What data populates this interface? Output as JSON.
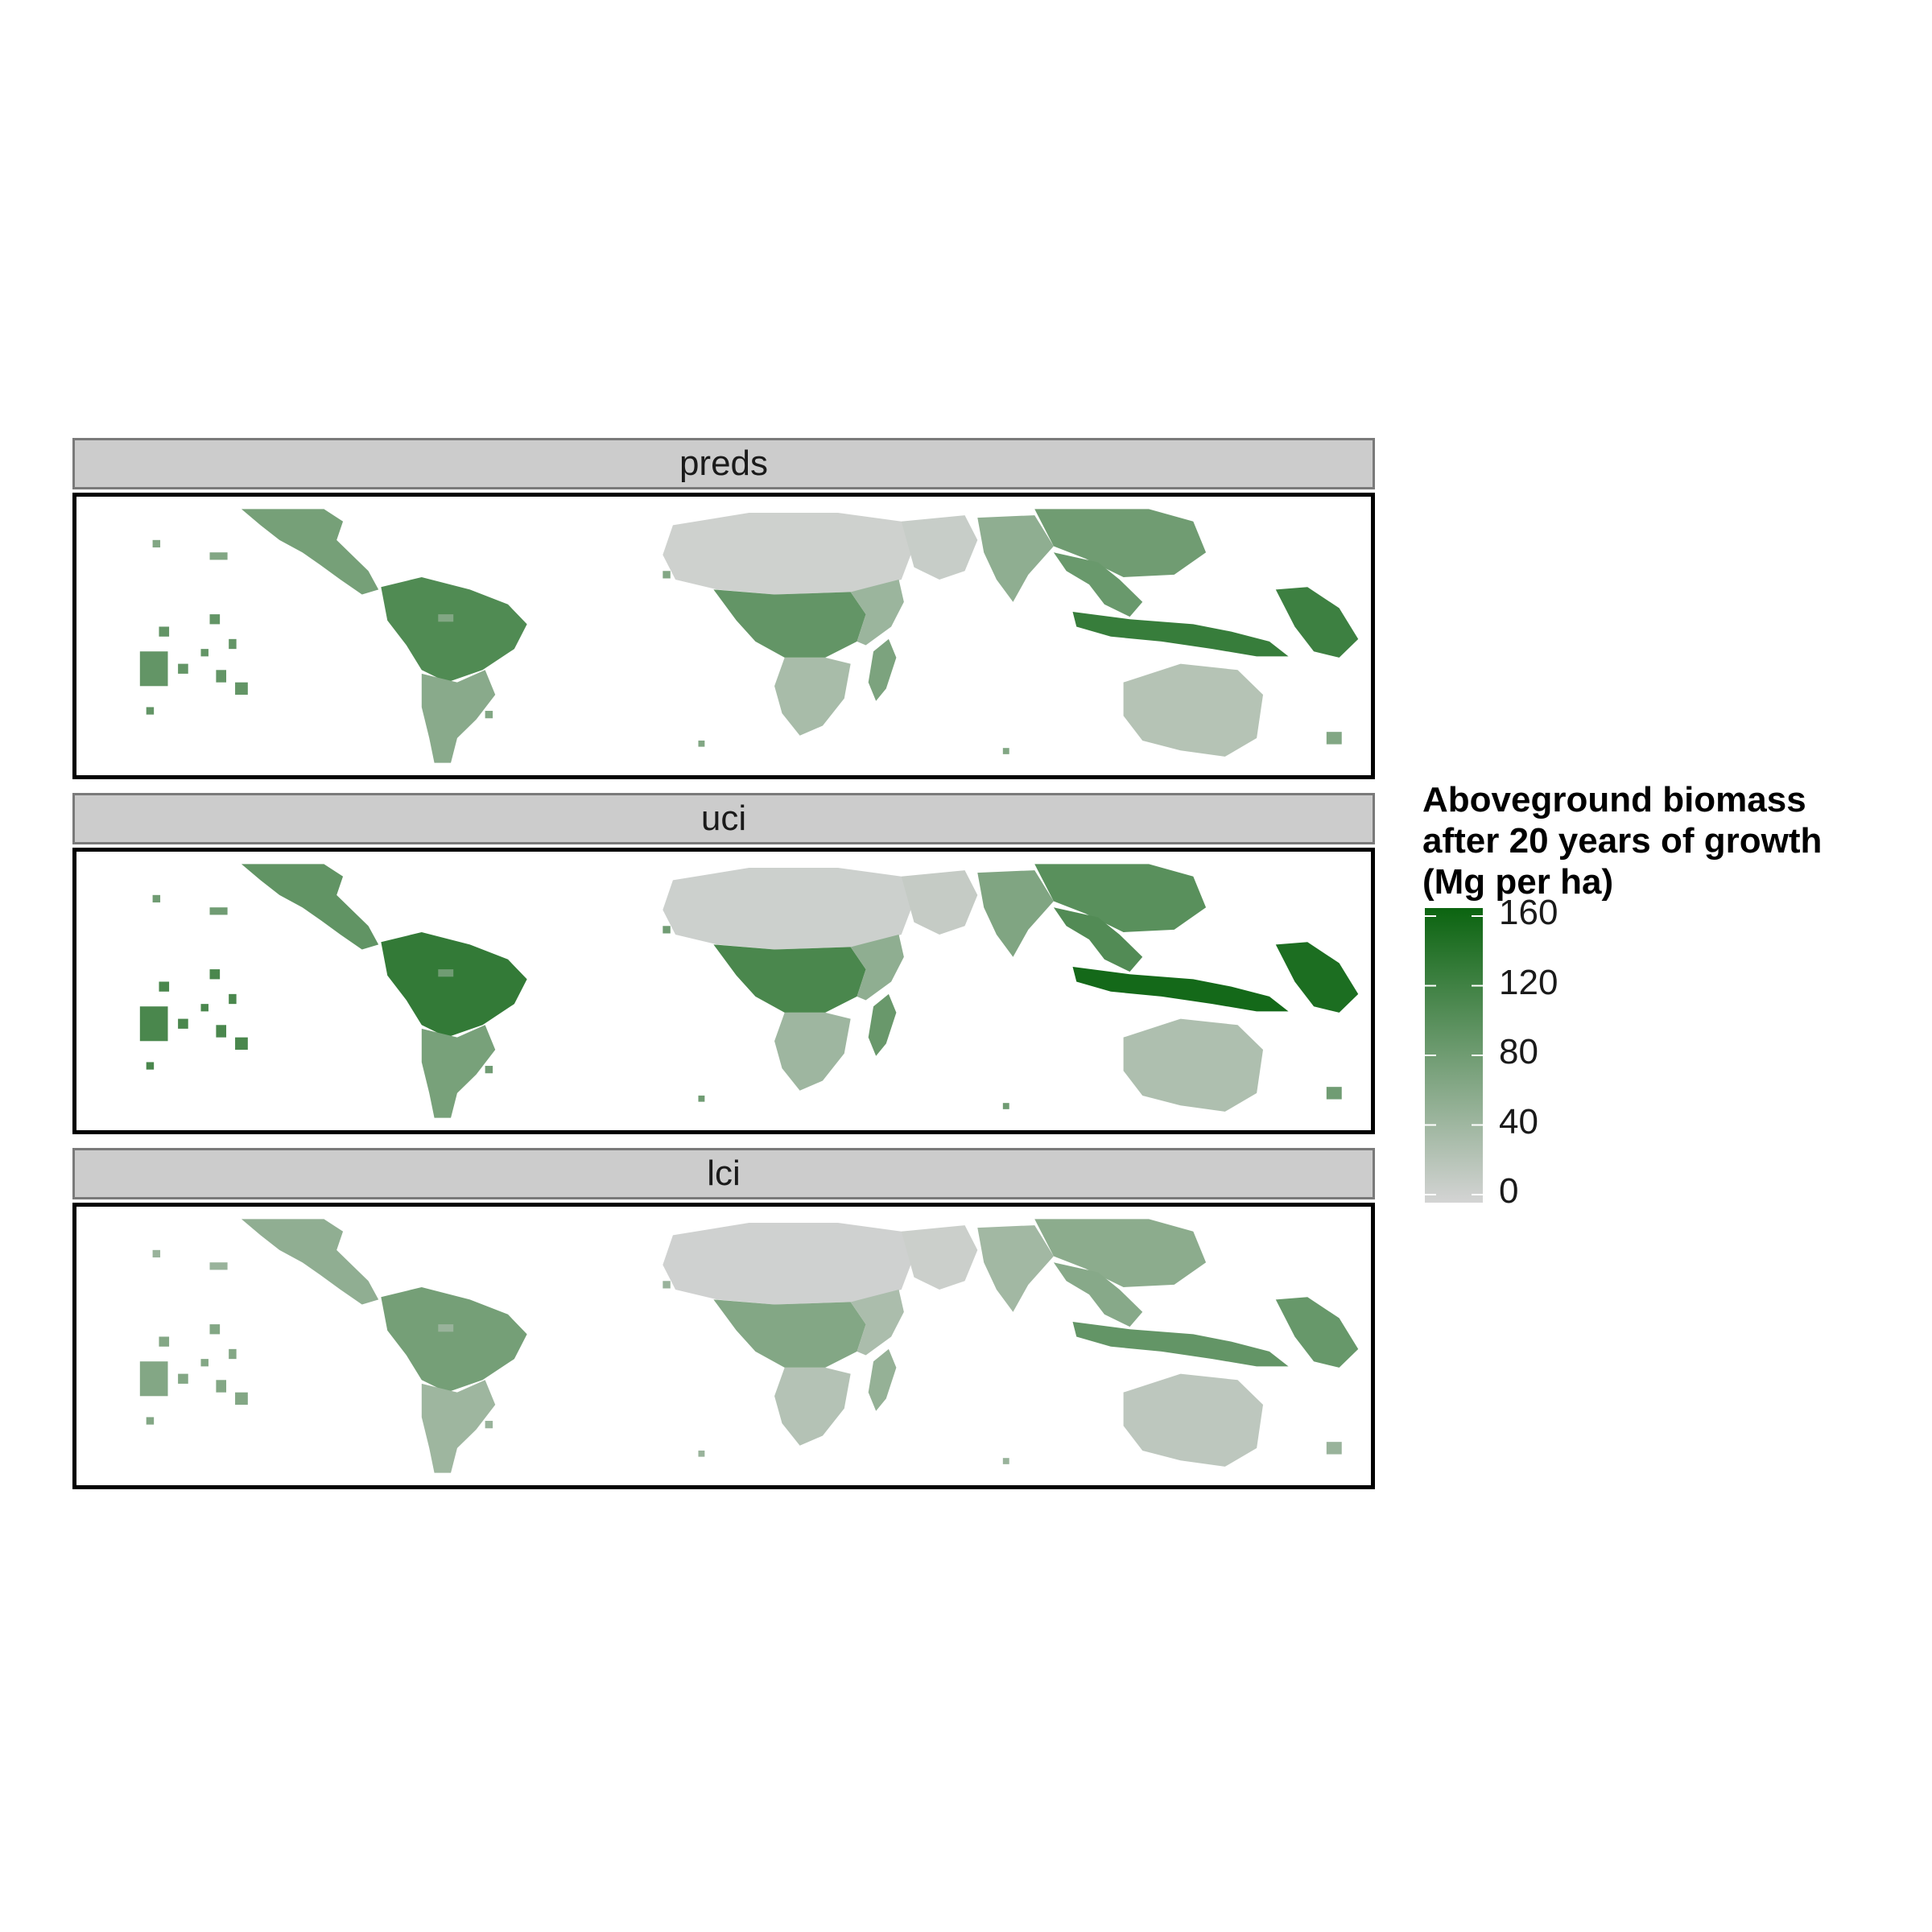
{
  "figure": {
    "type": "faceted raster map",
    "colors": {
      "low": "#d4d4d4",
      "high": "#0b6410",
      "strip_background": "#cccccc",
      "frame": "#000000"
    }
  },
  "panels": [
    {
      "id": "preds",
      "label": "preds",
      "scale": 1.0
    },
    {
      "id": "uci",
      "label": "uci",
      "scale": 1.22
    },
    {
      "id": "lci",
      "label": "lci",
      "scale": 0.72
    }
  ],
  "legend": {
    "title_lines": [
      "Aboveground biomass",
      "after 20 years of growth",
      "(Mg per ha)"
    ],
    "range": [
      0,
      160
    ],
    "ticks": [
      {
        "value": 160,
        "label": "160"
      },
      {
        "value": 120,
        "label": "120"
      },
      {
        "value": 80,
        "label": "80"
      },
      {
        "value": 40,
        "label": "40"
      },
      {
        "value": 0,
        "label": "0"
      }
    ],
    "placement": "right"
  },
  "regions": [
    {
      "name": "central-america",
      "biomass": 75
    },
    {
      "name": "amazon",
      "biomass": 105
    },
    {
      "name": "south-america-south",
      "biomass": 60
    },
    {
      "name": "sahara",
      "biomass": 5
    },
    {
      "name": "congo-basin",
      "biomass": 90
    },
    {
      "name": "southern-africa",
      "biomass": 35
    },
    {
      "name": "east-africa",
      "biomass": 45
    },
    {
      "name": "madagascar",
      "biomass": 70
    },
    {
      "name": "arabia",
      "biomass": 10
    },
    {
      "name": "india",
      "biomass": 55
    },
    {
      "name": "south-china",
      "biomass": 80
    },
    {
      "name": "southeast-asia",
      "biomass": 85
    },
    {
      "name": "indonesia",
      "biomass": 125
    },
    {
      "name": "new-guinea",
      "biomass": 120
    },
    {
      "name": "australia",
      "biomass": 25
    },
    {
      "name": "pacific-islands",
      "biomass": 90
    },
    {
      "name": "caribbean",
      "biomass": 65
    }
  ]
}
